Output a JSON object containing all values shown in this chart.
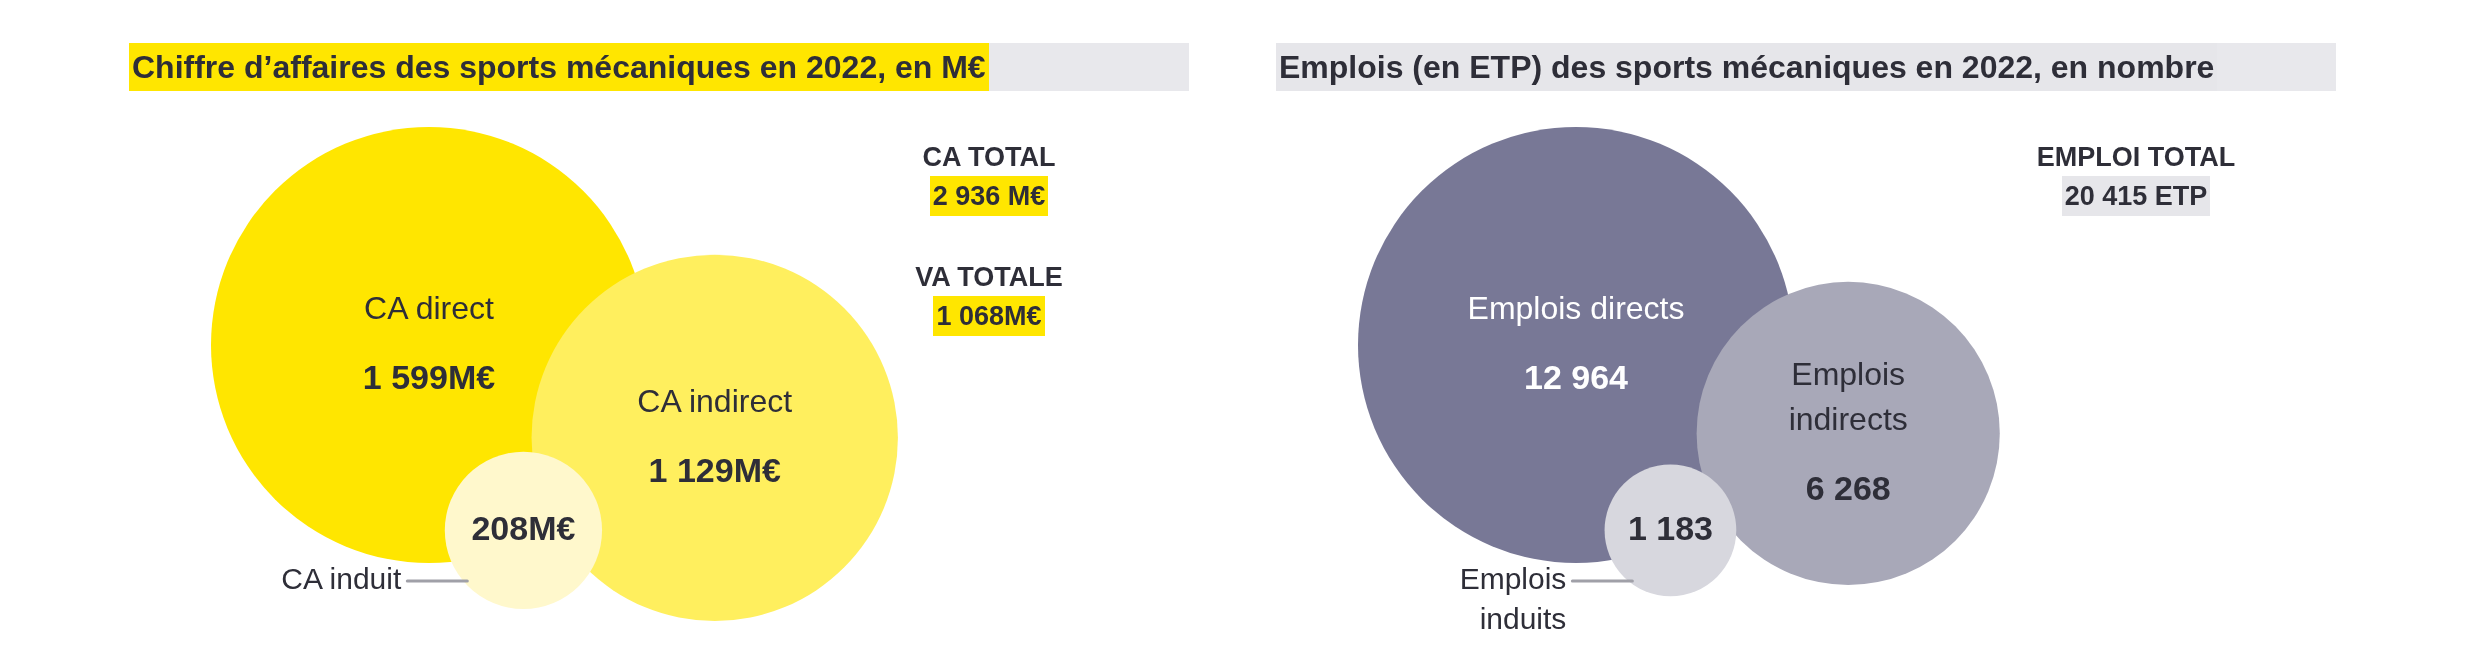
{
  "chart_data": [
    {
      "type": "other",
      "title": "Chiffre d’affaires des sports mécaniques en 2022, en M€",
      "categories": [
        "CA direct",
        "CA indirect",
        "CA induit"
      ],
      "values": [
        1599,
        1129,
        208
      ],
      "value_labels": [
        "1 599M€",
        "1 129M€",
        "208M€"
      ],
      "colors": [
        "#ffe600",
        "#ffef5e",
        "#fff8cc"
      ],
      "annotations": [
        "CA TOTAL",
        "2 936 M€",
        "VA TOTALE",
        "1 068M€"
      ]
    },
    {
      "type": "other",
      "title": "Emplois (en ETP) des sports mécaniques en 2022, en nombre",
      "categories": [
        "Emplois directs",
        "Emplois indirects",
        "Emplois induits"
      ],
      "values": [
        12964,
        6268,
        1183
      ],
      "value_labels": [
        "12 964",
        "6 268",
        "1 183"
      ],
      "colors": [
        "#787896",
        "#a8a8b8",
        "#d7d7de"
      ],
      "annotations": [
        "EMPLOI TOTAL",
        "20 415 ETP"
      ]
    }
  ]
}
